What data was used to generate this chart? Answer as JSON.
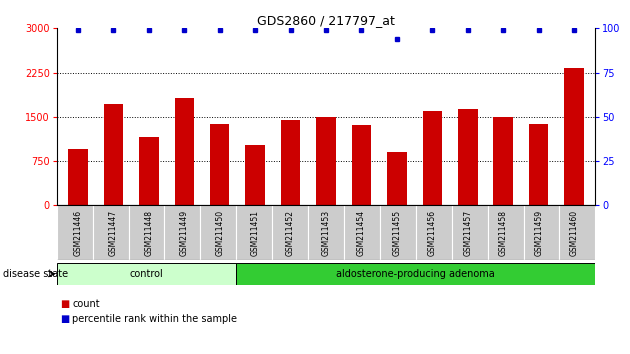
{
  "title": "GDS2860 / 217797_at",
  "samples": [
    "GSM211446",
    "GSM211447",
    "GSM211448",
    "GSM211449",
    "GSM211450",
    "GSM211451",
    "GSM211452",
    "GSM211453",
    "GSM211454",
    "GSM211455",
    "GSM211456",
    "GSM211457",
    "GSM211458",
    "GSM211459",
    "GSM211460"
  ],
  "counts": [
    950,
    1720,
    1150,
    1820,
    1380,
    1020,
    1450,
    1490,
    1360,
    900,
    1600,
    1640,
    1490,
    1380,
    2320
  ],
  "percentiles": [
    99,
    99,
    99,
    99,
    99,
    99,
    99,
    99,
    99,
    94,
    99,
    99,
    99,
    99,
    99
  ],
  "bar_color": "#cc0000",
  "dot_color": "#0000cc",
  "ylim_left": [
    0,
    3000
  ],
  "ylim_right": [
    0,
    100
  ],
  "yticks_left": [
    0,
    750,
    1500,
    2250,
    3000
  ],
  "yticks_right": [
    0,
    25,
    50,
    75,
    100
  ],
  "grid_lines": [
    750,
    1500,
    2250
  ],
  "groups": [
    {
      "label": "control",
      "start": 0,
      "end": 5,
      "color": "#ccffcc"
    },
    {
      "label": "aldosterone-producing adenoma",
      "start": 5,
      "end": 15,
      "color": "#33cc33"
    }
  ],
  "legend_items": [
    {
      "label": "count",
      "color": "#cc0000"
    },
    {
      "label": "percentile rank within the sample",
      "color": "#0000cc"
    }
  ],
  "disease_state_label": "disease state",
  "background_color": "#ffffff",
  "tick_area_color": "#cccccc",
  "bar_width": 0.55
}
